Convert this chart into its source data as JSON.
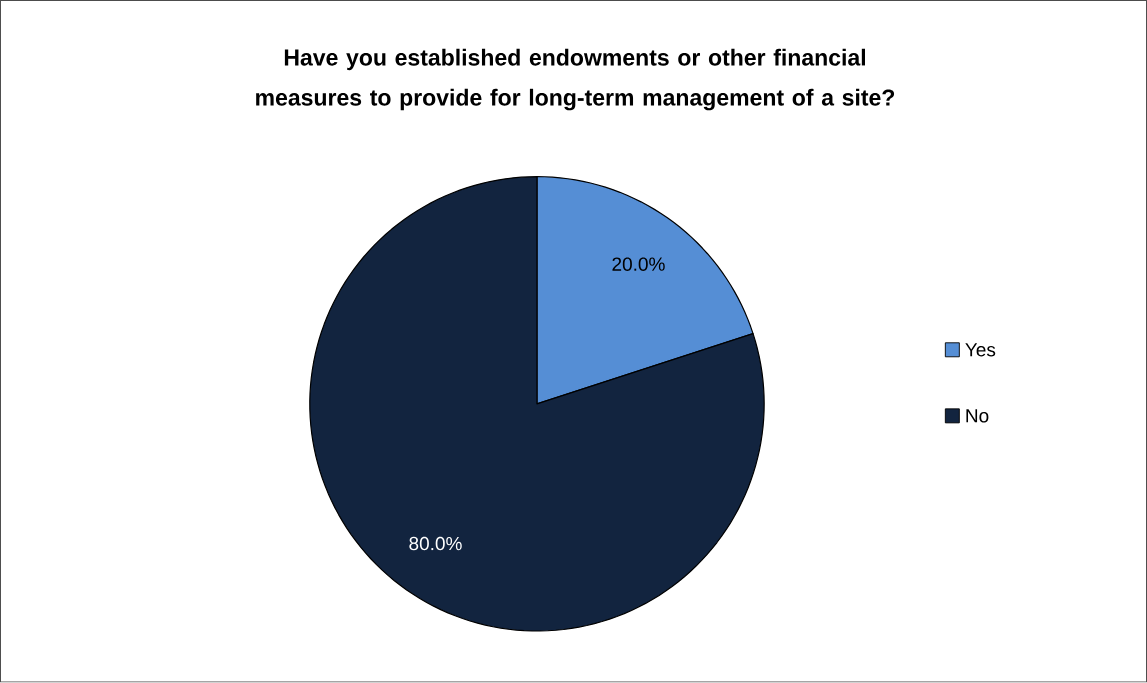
{
  "chart_data": {
    "type": "pie",
    "title": "Have you established endowments or other financial measures to provide for long-term management of a site?",
    "categories": [
      "Yes",
      "No"
    ],
    "values": [
      20,
      80
    ],
    "colors": [
      "#558ed5",
      "#12243f"
    ],
    "value_labels": [
      "20.0%",
      "80.0%"
    ],
    "legend": "right"
  }
}
